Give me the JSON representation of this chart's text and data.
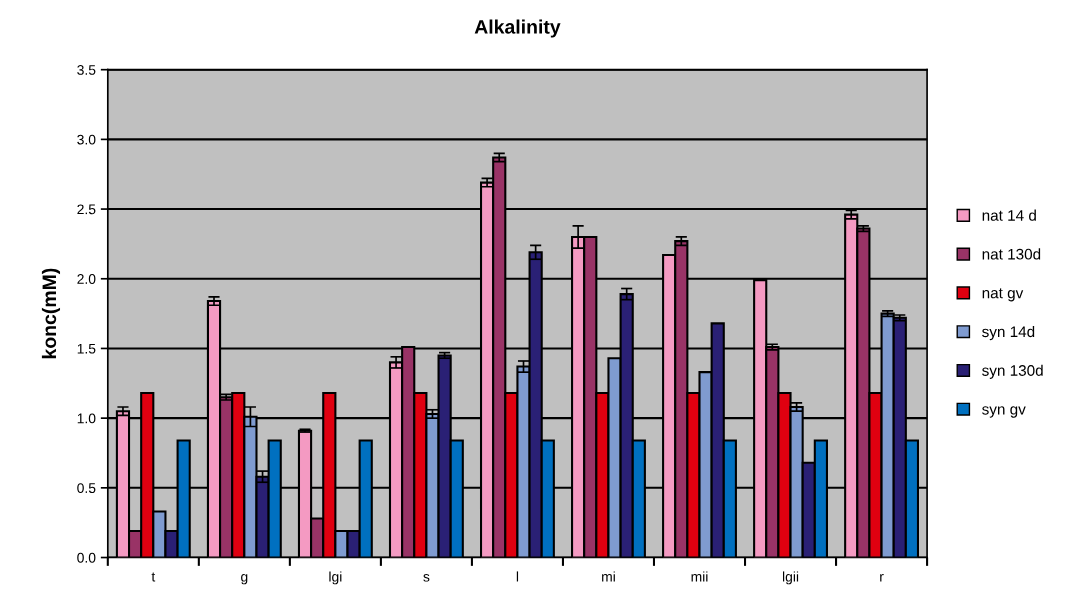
{
  "chart_data": {
    "type": "bar",
    "title": "Alkalinity",
    "ylabel": "konc(mM)",
    "categories": [
      "t",
      "g",
      "lgi",
      "s",
      "l",
      "mi",
      "mii",
      "lgii",
      "r"
    ],
    "series": [
      {
        "name": "nat 14 d",
        "color": "#f49ac2",
        "values": [
          1.05,
          1.84,
          0.91,
          1.4,
          2.69,
          2.3,
          2.17,
          1.99,
          2.46
        ],
        "errors": [
          0.03,
          0.03,
          0.01,
          0.04,
          0.03,
          0.08,
          null,
          null,
          0.03
        ]
      },
      {
        "name": "nat 130d",
        "color": "#993366",
        "values": [
          0.19,
          1.15,
          0.28,
          1.51,
          2.87,
          2.3,
          2.27,
          1.51,
          2.36
        ],
        "errors": [
          null,
          0.02,
          null,
          null,
          0.03,
          null,
          0.03,
          0.02,
          0.02
        ]
      },
      {
        "name": "nat gv",
        "color": "#e00010",
        "values": [
          1.18,
          1.18,
          1.18,
          1.18,
          1.18,
          1.18,
          1.18,
          1.18,
          1.18
        ]
      },
      {
        "name": "syn 14d",
        "color": "#7f9bd0",
        "values": [
          0.33,
          1.01,
          0.19,
          1.03,
          1.37,
          1.43,
          1.33,
          1.08,
          1.75
        ],
        "errors": [
          null,
          0.07,
          null,
          0.03,
          0.04,
          null,
          null,
          0.03,
          0.02
        ]
      },
      {
        "name": "syn 130d",
        "color": "#2a2075",
        "values": [
          0.19,
          0.58,
          0.19,
          1.45,
          2.19,
          1.89,
          1.68,
          0.68,
          1.72
        ],
        "errors": [
          null,
          0.04,
          null,
          0.02,
          0.05,
          0.04,
          null,
          null,
          0.02
        ]
      },
      {
        "name": "syn gv",
        "color": "#0070c0",
        "values": [
          0.84,
          0.84,
          0.84,
          0.84,
          0.84,
          0.84,
          0.84,
          0.84,
          0.84
        ]
      }
    ],
    "ylim": [
      0,
      3.5
    ],
    "yticks": [
      {
        "value": 0,
        "label": "0.0"
      },
      {
        "value": 0.5,
        "label": "0.5"
      },
      {
        "value": 1.0,
        "label": "1.0"
      },
      {
        "value": 1.5,
        "label": "1.5"
      },
      {
        "value": 2.0,
        "label": "2.0"
      },
      {
        "value": 2.5,
        "label": "2.5"
      },
      {
        "value": 3.0,
        "label": "3.0"
      },
      {
        "value": 3.5,
        "label": "3.5"
      }
    ],
    "grid": "y",
    "legend": "right"
  }
}
